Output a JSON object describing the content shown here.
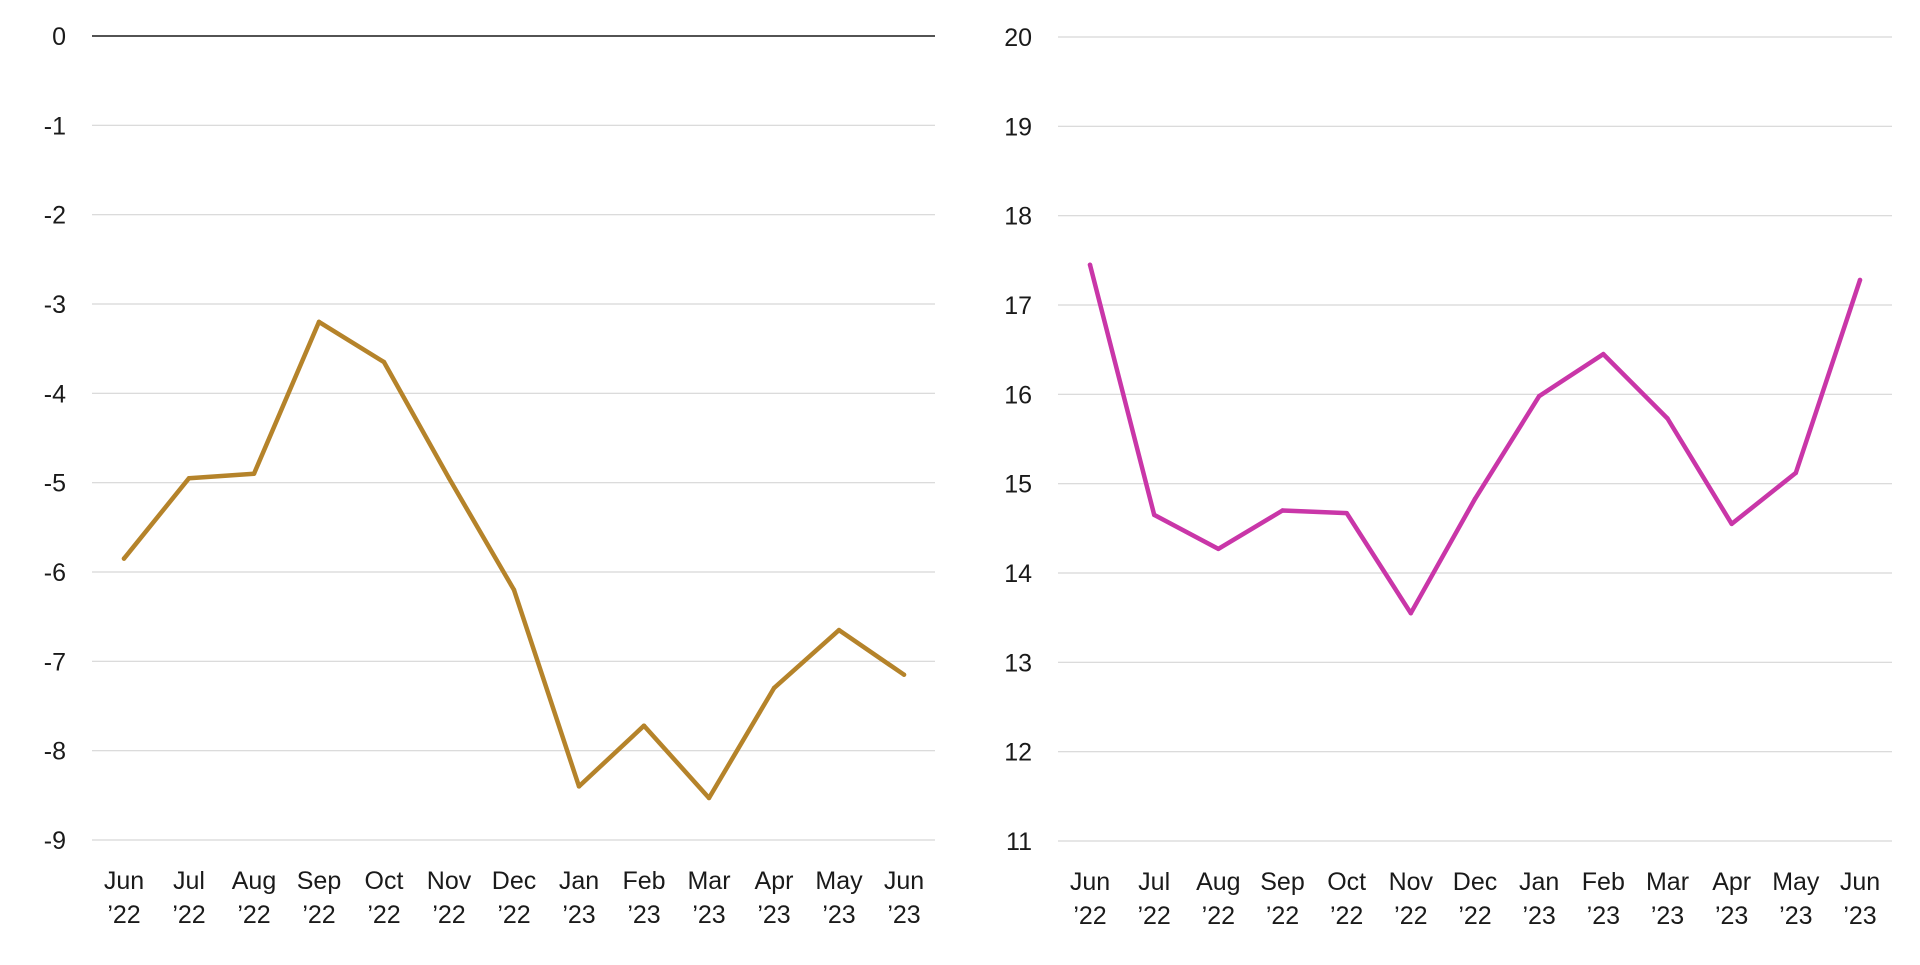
{
  "chart_data": [
    {
      "type": "line",
      "categories": [
        [
          "Jun",
          "’22"
        ],
        [
          "Jul",
          "’22"
        ],
        [
          "Aug",
          "’22"
        ],
        [
          "Sep",
          "’22"
        ],
        [
          "Oct",
          "’22"
        ],
        [
          "Nov",
          "’22"
        ],
        [
          "Dec",
          "’22"
        ],
        [
          "Jan",
          "’23"
        ],
        [
          "Feb",
          "’23"
        ],
        [
          "Mar",
          "’23"
        ],
        [
          "Apr",
          "’23"
        ],
        [
          "May",
          "’23"
        ],
        [
          "Jun",
          "’23"
        ]
      ],
      "series": [
        {
          "values": [
            -5.85,
            -4.95,
            -4.9,
            -3.2,
            -3.65,
            -4.95,
            -6.2,
            -8.4,
            -7.72,
            -8.53,
            -7.3,
            -6.65,
            -7.15
          ],
          "color": "#b5832a"
        }
      ],
      "ylim": [
        -9,
        0
      ],
      "yticks": [
        "0",
        "-1",
        "-2",
        "-3",
        "-4",
        "-5",
        "-6",
        "-7",
        "-8",
        "-9"
      ],
      "ytick_values": [
        0,
        -1,
        -2,
        -3,
        -4,
        -5,
        -6,
        -7,
        -8,
        -9
      ],
      "grid": true,
      "zero_line": true,
      "title": "",
      "xlabel": "",
      "ylabel": ""
    },
    {
      "type": "line",
      "categories": [
        [
          "Jun",
          "’22"
        ],
        [
          "Jul",
          "’22"
        ],
        [
          "Aug",
          "’22"
        ],
        [
          "Sep",
          "’22"
        ],
        [
          "Oct",
          "’22"
        ],
        [
          "Nov",
          "’22"
        ],
        [
          "Dec",
          "’22"
        ],
        [
          "Jan",
          "’23"
        ],
        [
          "Feb",
          "’23"
        ],
        [
          "Mar",
          "’23"
        ],
        [
          "Apr",
          "’23"
        ],
        [
          "May",
          "’23"
        ],
        [
          "Jun",
          "’23"
        ]
      ],
      "series": [
        {
          "values": [
            17.45,
            14.65,
            14.27,
            14.7,
            14.67,
            13.55,
            14.83,
            15.98,
            16.45,
            15.73,
            14.55,
            15.12,
            17.28
          ],
          "color": "#c936a8"
        }
      ],
      "ylim": [
        11,
        20
      ],
      "yticks": [
        "20",
        "19",
        "18",
        "17",
        "16",
        "15",
        "14",
        "13",
        "12",
        "11"
      ],
      "ytick_values": [
        20,
        19,
        18,
        17,
        16,
        15,
        14,
        13,
        12,
        11
      ],
      "grid": true,
      "zero_line": false,
      "title": "",
      "xlabel": "",
      "ylabel": ""
    }
  ]
}
